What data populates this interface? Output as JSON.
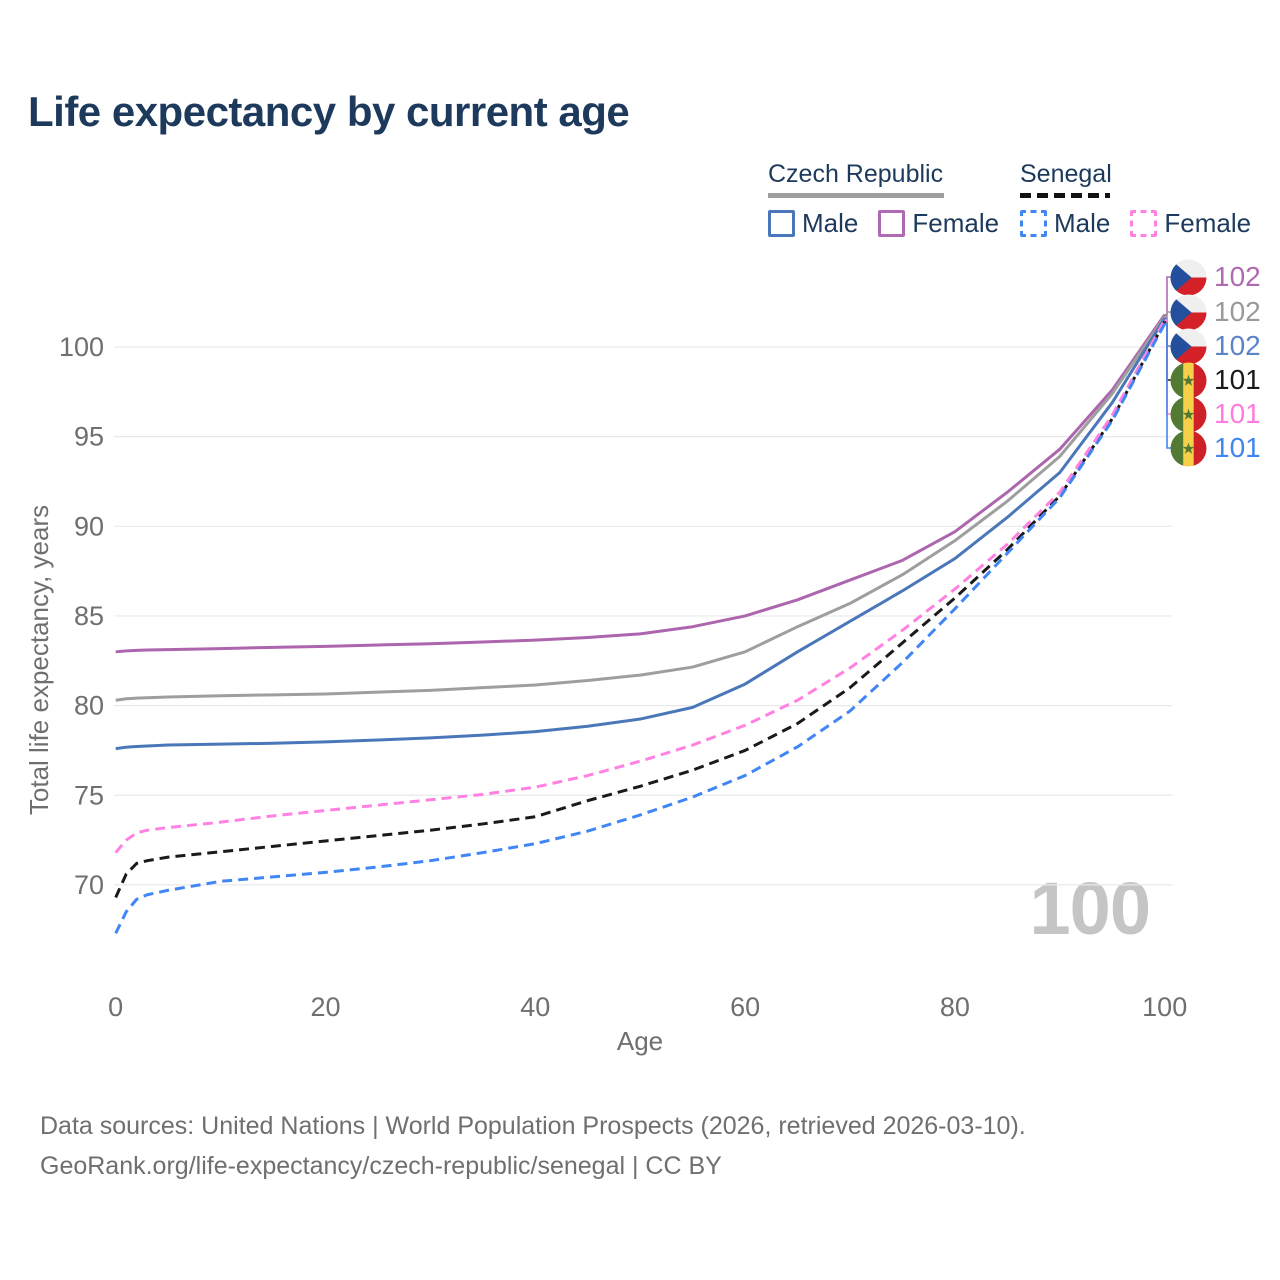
{
  "title": "Life expectancy by current age",
  "legend": {
    "groups": [
      {
        "label": "Czech Republic",
        "style": "solid",
        "items": [
          {
            "label": "Male",
            "color": "#4a77b9"
          },
          {
            "label": "Female",
            "color": "#b06ab3"
          }
        ]
      },
      {
        "label": "Senegal",
        "style": "dashed",
        "items": [
          {
            "label": "Male",
            "color": "#4186f5"
          },
          {
            "label": "Female",
            "color": "#ff82e2"
          }
        ]
      }
    ]
  },
  "watermark": "100",
  "end_labels": [
    {
      "value": "102",
      "color": "#b06ab0",
      "flag": "czech-republic"
    },
    {
      "value": "102",
      "color": "#9a9a9a",
      "flag": "czech-republic"
    },
    {
      "value": "102",
      "color": "#5b84c8",
      "flag": "czech-republic"
    },
    {
      "value": "101",
      "color": "#1a1a1a",
      "flag": "senegal"
    },
    {
      "value": "101",
      "color": "#ff7bdf",
      "flag": "senegal"
    },
    {
      "value": "101",
      "color": "#3f86f0",
      "flag": "senegal"
    }
  ],
  "footer": {
    "line1": "Data sources: United Nations | World Population Prospects (2026, retrieved 2026-03-10).",
    "line2": "GeoRank.org/life-expectancy/czech-republic/senegal | CC BY"
  },
  "chart_data": {
    "type": "line",
    "title": "Life expectancy by current age",
    "xlabel": "Age",
    "ylabel": "Total life expectancy, years",
    "xlim": [
      0,
      100
    ],
    "ylim": [
      66.5,
      103.5
    ],
    "x_ticks": [
      0,
      20,
      40,
      60,
      80,
      100
    ],
    "y_ticks": [
      70,
      75,
      80,
      85,
      90,
      95,
      100
    ],
    "grid": "horizontal",
    "legend_position": "top-right",
    "x": [
      0,
      1,
      2,
      3,
      5,
      10,
      15,
      20,
      25,
      30,
      35,
      40,
      45,
      50,
      55,
      60,
      65,
      70,
      75,
      80,
      85,
      90,
      95,
      100
    ],
    "series": [
      {
        "id": "cz-female",
        "name": "Czech Republic Female",
        "color": "#ad65ae",
        "dashed": false,
        "end_label": "102",
        "values": [
          83.0,
          83.05,
          83.08,
          83.1,
          83.12,
          83.18,
          83.25,
          83.3,
          83.38,
          83.45,
          83.55,
          83.65,
          83.8,
          84.0,
          84.4,
          85.0,
          85.9,
          87.0,
          88.1,
          89.7,
          91.9,
          94.3,
          97.6,
          101.8
        ]
      },
      {
        "id": "cz-total",
        "name": "Czech Republic Total",
        "color": "#9e9e9e",
        "dashed": false,
        "end_label": "102",
        "values": [
          80.3,
          80.38,
          80.42,
          80.44,
          80.48,
          80.55,
          80.6,
          80.65,
          80.75,
          80.85,
          81.0,
          81.15,
          81.4,
          81.7,
          82.15,
          83.0,
          84.4,
          85.7,
          87.3,
          89.2,
          91.4,
          93.9,
          97.4,
          101.7
        ]
      },
      {
        "id": "cz-male",
        "name": "Czech Republic Male",
        "color": "#4a77b9",
        "dashed": false,
        "end_label": "102",
        "values": [
          77.6,
          77.68,
          77.72,
          77.75,
          77.8,
          77.85,
          77.9,
          77.98,
          78.08,
          78.2,
          78.35,
          78.55,
          78.85,
          79.25,
          79.9,
          81.2,
          83.0,
          84.7,
          86.4,
          88.2,
          90.5,
          93.0,
          96.9,
          101.6
        ]
      },
      {
        "id": "sn-total",
        "name": "Senegal Total",
        "color": "#1a1a1a",
        "dashed": true,
        "end_label": "101",
        "values": [
          69.3,
          70.6,
          71.2,
          71.35,
          71.55,
          71.85,
          72.15,
          72.45,
          72.75,
          73.05,
          73.4,
          73.8,
          74.7,
          75.5,
          76.4,
          77.5,
          79.0,
          81.0,
          83.5,
          86.0,
          88.7,
          91.7,
          96.0,
          101.4
        ]
      },
      {
        "id": "sn-female",
        "name": "Senegal Female",
        "color": "#ff82e2",
        "dashed": true,
        "end_label": "101",
        "values": [
          71.8,
          72.5,
          72.9,
          73.05,
          73.2,
          73.5,
          73.85,
          74.15,
          74.45,
          74.75,
          75.05,
          75.45,
          76.1,
          76.9,
          77.8,
          78.9,
          80.3,
          82.1,
          84.2,
          86.5,
          89.0,
          91.9,
          96.2,
          101.5
        ]
      },
      {
        "id": "sn-male",
        "name": "Senegal Male",
        "color": "#4186f5",
        "dashed": true,
        "end_label": "101",
        "values": [
          67.3,
          68.5,
          69.2,
          69.45,
          69.7,
          70.2,
          70.45,
          70.7,
          71.0,
          71.35,
          71.8,
          72.3,
          73.0,
          73.9,
          74.9,
          76.1,
          77.7,
          79.7,
          82.4,
          85.4,
          88.5,
          91.6,
          95.9,
          101.3
        ]
      }
    ]
  }
}
